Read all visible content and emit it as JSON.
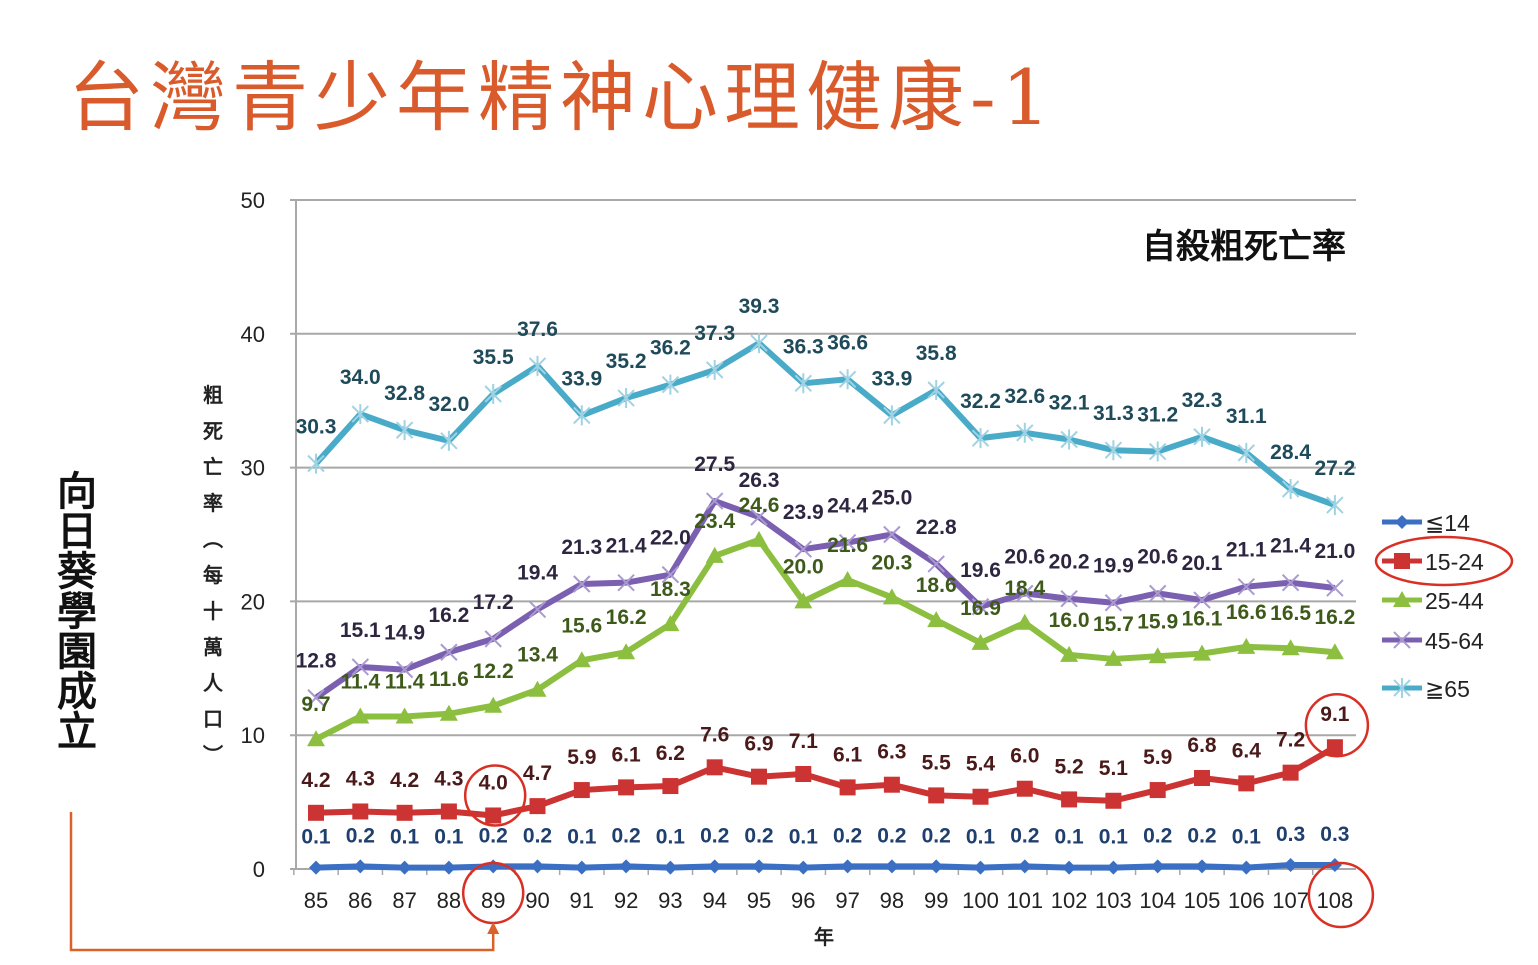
{
  "slide": {
    "title": "台灣青少年精神心理健康-1",
    "side_note": "向日葵學園成立",
    "colors": {
      "title": "#d95a2b",
      "annotation": "#d93025",
      "arrow": "#d9622b"
    }
  },
  "chart_data": {
    "type": "line",
    "title": "自殺粗死亡率",
    "xlabel": "年",
    "ylabel": "粗死亡率(每十萬人口)",
    "ylim": [
      0,
      50
    ],
    "yticks": [
      0,
      10,
      20,
      30,
      40,
      50
    ],
    "grid": true,
    "legend_position": "right",
    "categories": [
      "85",
      "86",
      "87",
      "88",
      "89",
      "90",
      "91",
      "92",
      "93",
      "94",
      "95",
      "96",
      "97",
      "98",
      "99",
      "100",
      "101",
      "102",
      "103",
      "104",
      "105",
      "106",
      "107",
      "108"
    ],
    "series": [
      {
        "name": "≦14",
        "color": "#3a6fc4",
        "label_color": "#1f3f6e",
        "marker": "diamond",
        "values": [
          0.1,
          0.2,
          0.1,
          0.1,
          0.2,
          0.2,
          0.1,
          0.2,
          0.1,
          0.2,
          0.2,
          0.1,
          0.2,
          0.2,
          0.2,
          0.1,
          0.2,
          0.1,
          0.1,
          0.2,
          0.2,
          0.1,
          0.3,
          0.3
        ]
      },
      {
        "name": "15-24",
        "color": "#cc3333",
        "label_color": "#4a1a1a",
        "marker": "square",
        "values": [
          4.2,
          4.3,
          4.2,
          4.3,
          4.0,
          4.7,
          5.9,
          6.1,
          6.2,
          7.6,
          6.9,
          7.1,
          6.1,
          6.3,
          5.5,
          5.4,
          6.0,
          5.2,
          5.1,
          5.9,
          6.8,
          6.4,
          7.2,
          9.1
        ]
      },
      {
        "name": "25-44",
        "color": "#8cbf3f",
        "label_color": "#3e5a1a",
        "marker": "triangle",
        "values": [
          9.7,
          11.4,
          11.4,
          11.6,
          12.2,
          13.4,
          15.6,
          16.2,
          18.3,
          23.4,
          24.6,
          20.0,
          21.6,
          20.3,
          18.6,
          16.9,
          18.4,
          16.0,
          15.7,
          15.9,
          16.1,
          16.6,
          16.5,
          16.2
        ]
      },
      {
        "name": "45-64",
        "color": "#7b5fb0",
        "label_color": "#2e2640",
        "marker": "x",
        "values": [
          12.8,
          15.1,
          14.9,
          16.2,
          17.2,
          19.4,
          21.3,
          21.4,
          22.0,
          27.5,
          26.3,
          23.9,
          24.4,
          25.0,
          22.8,
          19.6,
          20.6,
          20.2,
          19.9,
          20.6,
          20.1,
          21.1,
          21.4,
          21.0
        ]
      },
      {
        "name": "≧65",
        "color": "#4aabc9",
        "label_color": "#1e4a5a",
        "marker": "asterisk",
        "values": [
          30.3,
          34.0,
          32.8,
          32.0,
          35.5,
          37.6,
          33.9,
          35.2,
          36.2,
          37.3,
          39.3,
          36.3,
          36.6,
          33.9,
          35.8,
          32.2,
          32.6,
          32.1,
          31.3,
          31.2,
          32.3,
          31.1,
          28.4,
          27.2
        ]
      }
    ],
    "annotations": [
      {
        "type": "circle",
        "target": "15-24 @ 89",
        "text": "4.0"
      },
      {
        "type": "circle",
        "target": "15-24 @ 108",
        "text": "9.1"
      },
      {
        "type": "circle",
        "target": "x-tick 89"
      },
      {
        "type": "circle",
        "target": "x-tick 108"
      },
      {
        "type": "ellipse",
        "target": "legend 15-24"
      },
      {
        "type": "arrow",
        "from": "side note",
        "to": "x-tick 89"
      }
    ]
  }
}
